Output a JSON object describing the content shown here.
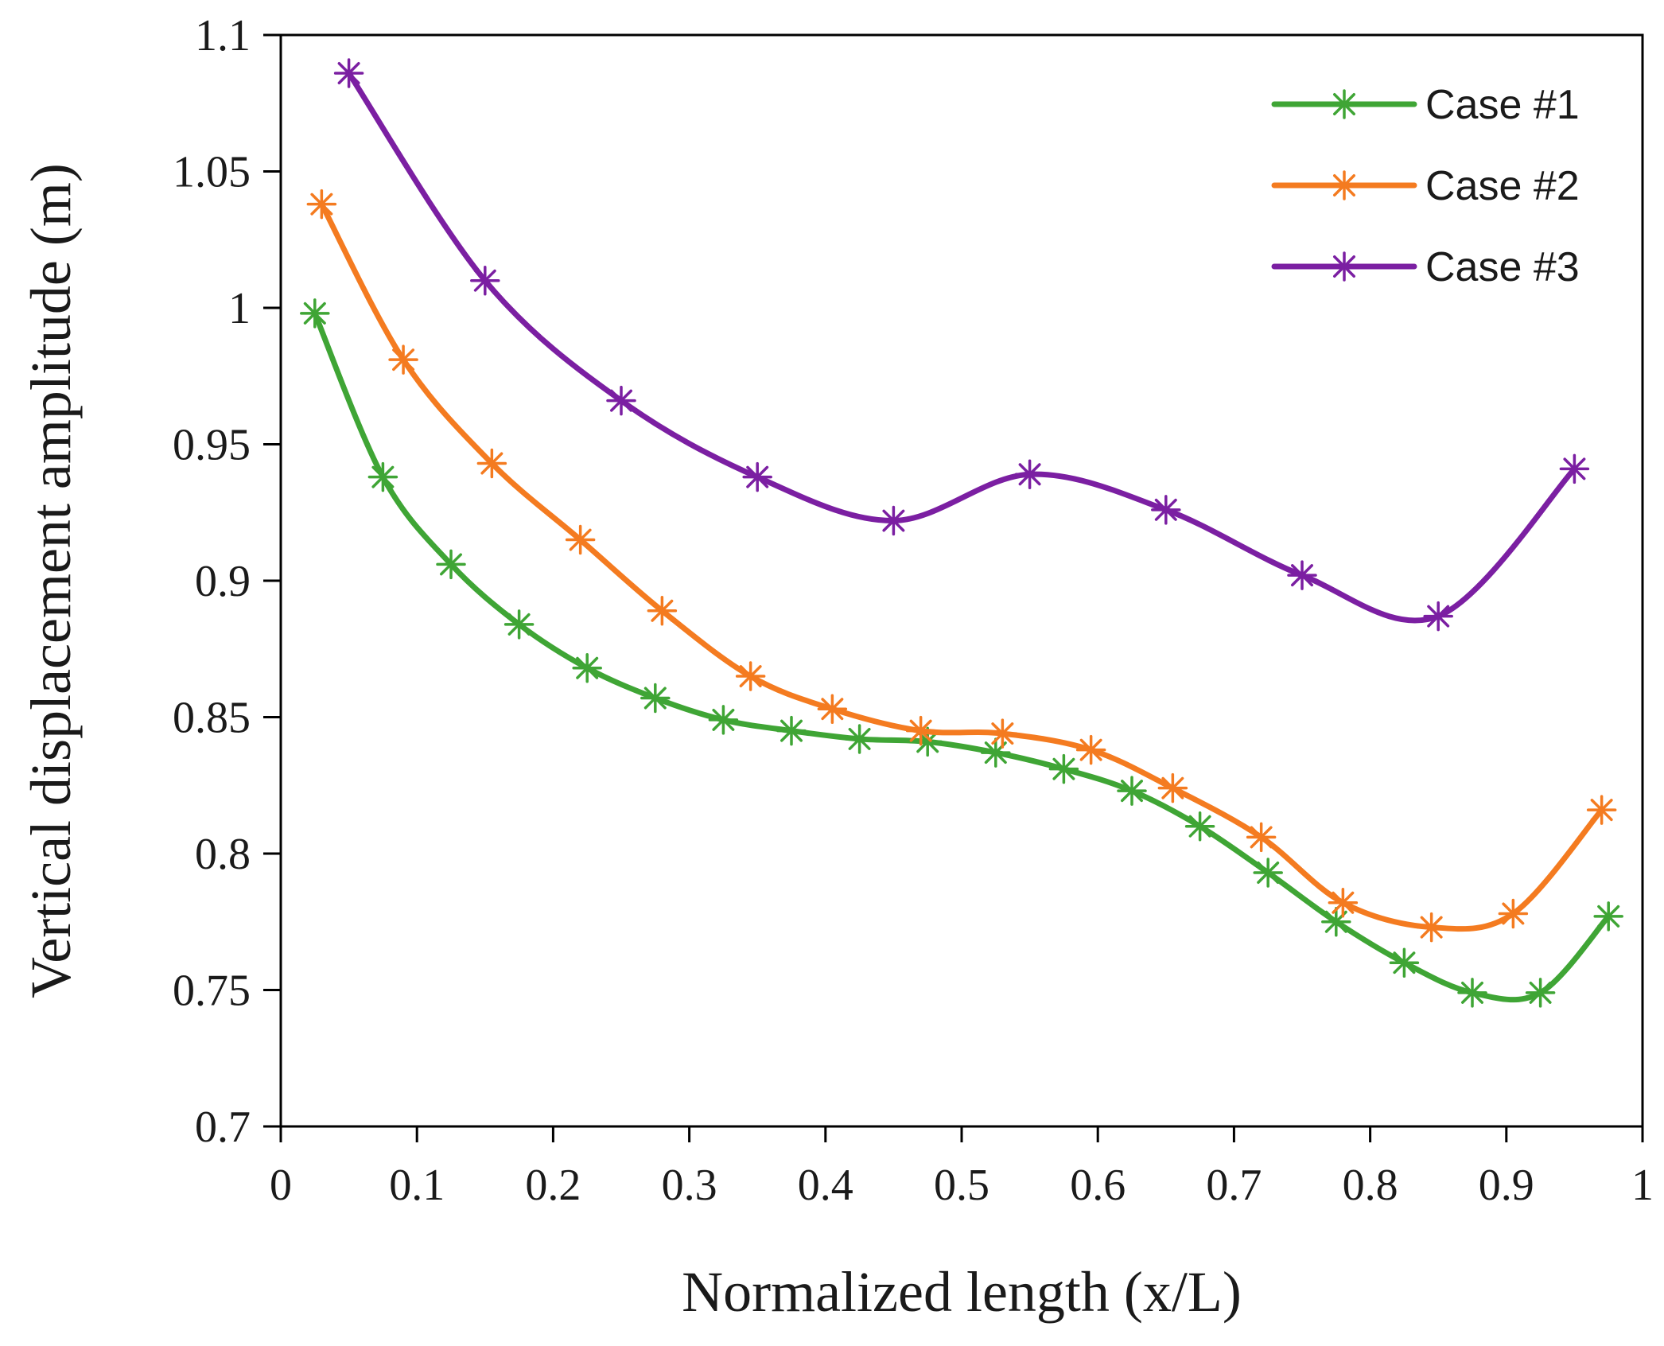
{
  "chart_data": {
    "type": "line",
    "title": "",
    "xlabel": "Normalized length (x/L)",
    "ylabel": "Vertical displacement amplitude (m)",
    "xlim": [
      0,
      1
    ],
    "ylim": [
      0.7,
      1.1
    ],
    "xticks": [
      0,
      0.1,
      0.2,
      0.3,
      0.4,
      0.5,
      0.6,
      0.7,
      0.8,
      0.9,
      1
    ],
    "xtick_labels": [
      "0",
      "0.1",
      "0.2",
      "0.3",
      "0.4",
      "0.5",
      "0.6",
      "0.7",
      "0.8",
      "0.9",
      "1"
    ],
    "yticks": [
      0.7,
      0.75,
      0.8,
      0.85,
      0.9,
      0.95,
      1.0,
      1.05,
      1.1
    ],
    "ytick_labels": [
      "0.7",
      "0.75",
      "0.8",
      "0.85",
      "0.9",
      "0.95",
      "1",
      "1.05",
      "1.1"
    ],
    "grid": false,
    "legend_position": "top-right",
    "series": [
      {
        "name": "Case #1",
        "color": "#3FA535",
        "marker": "asterisk",
        "x": [
          0.025,
          0.075,
          0.125,
          0.175,
          0.225,
          0.275,
          0.325,
          0.375,
          0.425,
          0.475,
          0.525,
          0.575,
          0.625,
          0.675,
          0.725,
          0.775,
          0.825,
          0.875,
          0.925,
          0.975
        ],
        "y": [
          0.998,
          0.938,
          0.906,
          0.884,
          0.868,
          0.857,
          0.849,
          0.845,
          0.842,
          0.841,
          0.837,
          0.831,
          0.823,
          0.81,
          0.793,
          0.775,
          0.76,
          0.749,
          0.749,
          0.777
        ]
      },
      {
        "name": "Case #2",
        "color": "#F47B20",
        "marker": "asterisk",
        "x": [
          0.03,
          0.09,
          0.155,
          0.22,
          0.28,
          0.345,
          0.405,
          0.47,
          0.53,
          0.595,
          0.655,
          0.72,
          0.78,
          0.845,
          0.905,
          0.97
        ],
        "y": [
          1.038,
          0.981,
          0.943,
          0.915,
          0.889,
          0.865,
          0.853,
          0.845,
          0.844,
          0.838,
          0.824,
          0.806,
          0.782,
          0.773,
          0.778,
          0.816
        ]
      },
      {
        "name": "Case #3",
        "color": "#7B1FA2",
        "marker": "asterisk",
        "x": [
          0.05,
          0.15,
          0.25,
          0.35,
          0.45,
          0.55,
          0.65,
          0.75,
          0.85,
          0.95
        ],
        "y": [
          1.086,
          1.01,
          0.966,
          0.938,
          0.922,
          0.939,
          0.926,
          0.902,
          0.887,
          0.941
        ]
      }
    ]
  }
}
